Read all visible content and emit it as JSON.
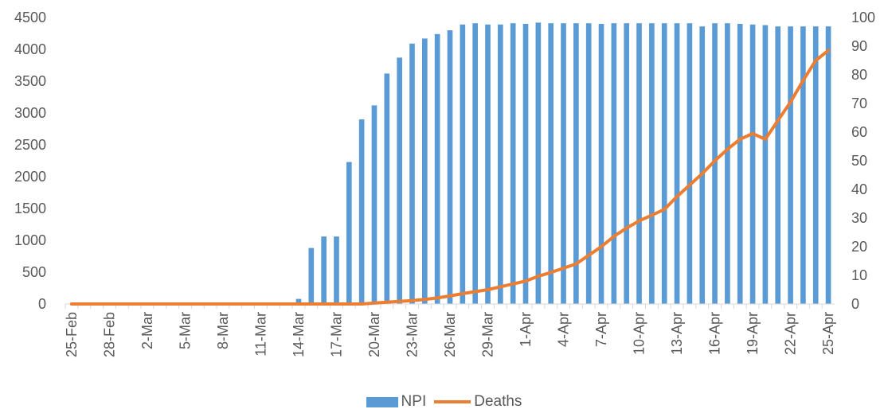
{
  "chart_data": {
    "type": "bar+line",
    "x": [
      "25-Feb",
      "26-Feb",
      "27-Feb",
      "28-Feb",
      "29-Feb",
      "1-Mar",
      "2-Mar",
      "3-Mar",
      "4-Mar",
      "5-Mar",
      "6-Mar",
      "7-Mar",
      "8-Mar",
      "9-Mar",
      "10-Mar",
      "11-Mar",
      "12-Mar",
      "13-Mar",
      "14-Mar",
      "15-Mar",
      "16-Mar",
      "17-Mar",
      "18-Mar",
      "19-Mar",
      "20-Mar",
      "21-Mar",
      "22-Mar",
      "23-Mar",
      "24-Mar",
      "25-Mar",
      "26-Mar",
      "27-Mar",
      "28-Mar",
      "29-Mar",
      "30-Mar",
      "31-Mar",
      "1-Apr",
      "2-Apr",
      "3-Apr",
      "4-Apr",
      "5-Apr",
      "6-Apr",
      "7-Apr",
      "8-Apr",
      "9-Apr",
      "10-Apr",
      "11-Apr",
      "12-Apr",
      "13-Apr",
      "14-Apr",
      "15-Apr",
      "16-Apr",
      "17-Apr",
      "18-Apr",
      "19-Apr",
      "20-Apr",
      "21-Apr",
      "22-Apr",
      "23-Apr",
      "24-Apr",
      "25-Apr"
    ],
    "x_tick_labels": [
      "25-Feb",
      "28-Feb",
      "2-Mar",
      "5-Mar",
      "8-Mar",
      "11-Mar",
      "14-Mar",
      "17-Mar",
      "20-Mar",
      "23-Mar",
      "26-Mar",
      "29-Mar",
      "1-Apr",
      "4-Apr",
      "7-Apr",
      "10-Apr",
      "13-Apr",
      "16-Apr",
      "19-Apr",
      "22-Apr",
      "25-Apr"
    ],
    "series": [
      {
        "name": "NPI",
        "type": "bar",
        "axis": "left",
        "color": "#5b9bd5",
        "values": [
          0,
          0,
          0,
          0,
          0,
          0,
          0,
          0,
          0,
          0,
          0,
          0,
          0,
          0,
          0,
          0,
          0,
          0,
          80,
          880,
          1060,
          1060,
          2230,
          2900,
          3120,
          3620,
          3870,
          4090,
          4170,
          4240,
          4300,
          4390,
          4410,
          4390,
          4390,
          4410,
          4400,
          4420,
          4410,
          4410,
          4410,
          4410,
          4400,
          4410,
          4410,
          4410,
          4410,
          4410,
          4410,
          4410,
          4360,
          4410,
          4410,
          4400,
          4390,
          4380,
          4360,
          4360,
          4360,
          4360,
          4360
        ]
      },
      {
        "name": "Deaths",
        "type": "line",
        "axis": "right",
        "color": "#ed7d31",
        "values": [
          0,
          0,
          0,
          0,
          0,
          0,
          0,
          0,
          0,
          0,
          0,
          0,
          0,
          0,
          0,
          0,
          0,
          0,
          0,
          0,
          0,
          0,
          0,
          0,
          0.3,
          0.6,
          0.9,
          1.2,
          1.6,
          2.1,
          2.8,
          3.6,
          4.3,
          5,
          6,
          7,
          8,
          9.7,
          11,
          12.5,
          14,
          17,
          20,
          23.6,
          26.5,
          29,
          31,
          33,
          37.5,
          41.5,
          45.5,
          50,
          54,
          57.5,
          59.5,
          57.5,
          64,
          70.5,
          78,
          85,
          88.5
        ]
      }
    ],
    "y_left": {
      "min": 0,
      "max": 4500,
      "ticks": [
        0,
        500,
        1000,
        1500,
        2000,
        2500,
        3000,
        3500,
        4000,
        4500
      ]
    },
    "y_right": {
      "min": 0,
      "max": 100,
      "ticks": [
        0,
        10,
        20,
        30,
        40,
        50,
        60,
        70,
        80,
        90,
        100
      ]
    },
    "title": "",
    "xlabel": "",
    "ylabel": "",
    "grid": false,
    "legend_position": "bottom"
  }
}
